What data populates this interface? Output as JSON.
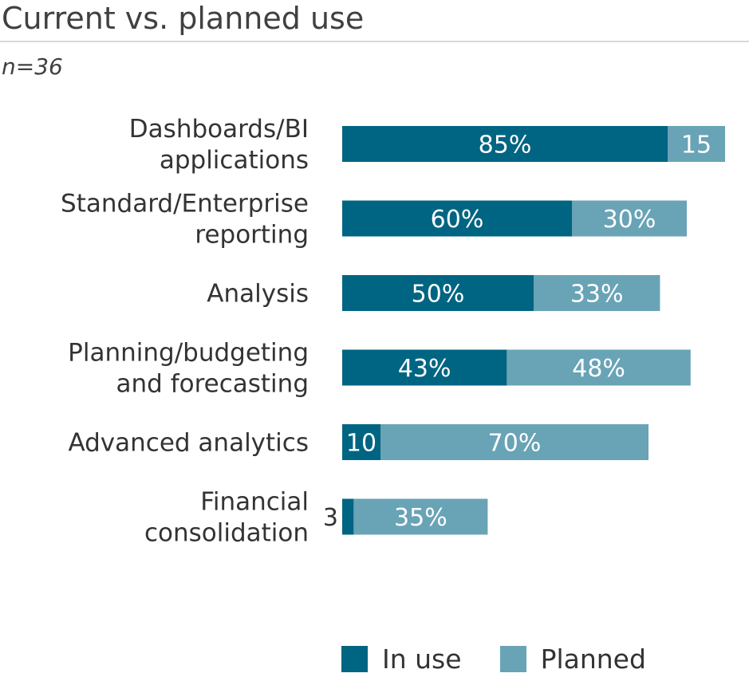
{
  "chart_data": {
    "type": "bar",
    "orientation": "horizontal",
    "stacked": true,
    "title": "Current vs. planned use",
    "subtitle": "n=36",
    "categories": [
      [
        "Dashboards/BI",
        "applications"
      ],
      [
        "Standard/Enterprise",
        "reporting"
      ],
      [
        "Analysis"
      ],
      [
        "Planning/budgeting",
        "and forecasting"
      ],
      [
        "Advanced analytics"
      ],
      [
        "Financial",
        "consolidation"
      ]
    ],
    "series": [
      {
        "name": "In use",
        "color": "#006582",
        "values": [
          85,
          60,
          50,
          43,
          10,
          3
        ],
        "labels": [
          "85%",
          "60%",
          "50%",
          "43%",
          "10",
          "3"
        ]
      },
      {
        "name": "Planned",
        "color": "#69a3b6",
        "values": [
          15,
          30,
          33,
          48,
          70,
          35
        ],
        "labels": [
          "15",
          "30%",
          "33%",
          "48%",
          "70%",
          "35%"
        ]
      }
    ],
    "xlim": [
      0,
      100
    ],
    "grid": false,
    "legend_position": "bottom"
  }
}
